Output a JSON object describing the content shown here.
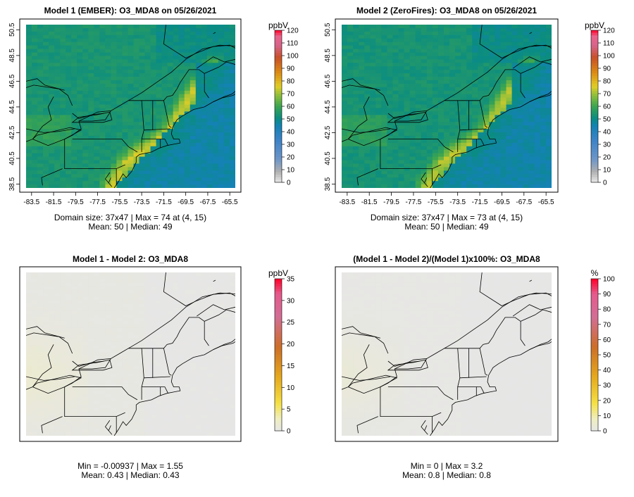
{
  "chart_data": [
    {
      "type": "heatmap",
      "title": "Model 1 (EMBER): O3_MDA8 on 05/26/2021",
      "x_ticks": [
        "-83.5",
        "-81.5",
        "-79.5",
        "-77.5",
        "-75.5",
        "-73.5",
        "-71.5",
        "-69.5",
        "-67.5",
        "-65.5"
      ],
      "y_ticks": [
        "38.5",
        "40.5",
        "42.5",
        "44.5",
        "46.5",
        "48.5",
        "50.5"
      ],
      "xlim": [
        -84,
        -65
      ],
      "ylim": [
        38.2,
        50.9
      ],
      "colorbar": {
        "unit": "ppbV",
        "ticks": [
          "0",
          "10",
          "20",
          "30",
          "40",
          "50",
          "60",
          "70",
          "80",
          "90",
          "100",
          "110",
          "120"
        ],
        "range": [
          0,
          120
        ]
      },
      "stats": [
        "Domain size: 37x47 | Max = 74 at (4, 15)",
        "Mean: 50 |  Median: 49"
      ],
      "palette": "concentration",
      "field": {
        "base": 50,
        "corridor_peak": 70,
        "inland": 56,
        "ocean": 46
      }
    },
    {
      "type": "heatmap",
      "title": "Model 2 (ZeroFires): O3_MDA8 on 05/26/2021",
      "x_ticks": [
        "-83.5",
        "-81.5",
        "-79.5",
        "-77.5",
        "-75.5",
        "-73.5",
        "-71.5",
        "-69.5",
        "-67.5",
        "-65.5"
      ],
      "y_ticks": [
        "38.5",
        "40.5",
        "42.5",
        "44.5",
        "46.5",
        "48.5",
        "50.5"
      ],
      "xlim": [
        -84,
        -65
      ],
      "ylim": [
        38.2,
        50.9
      ],
      "colorbar": {
        "unit": "ppbV",
        "ticks": [
          "0",
          "10",
          "20",
          "30",
          "40",
          "50",
          "60",
          "70",
          "80",
          "90",
          "100",
          "110",
          "120"
        ],
        "range": [
          0,
          120
        ]
      },
      "stats": [
        "Domain size: 37x47 | Max = 73 at (4, 15)",
        "Mean: 50 |  Median: 49"
      ],
      "palette": "concentration",
      "field": {
        "base": 50,
        "corridor_peak": 69,
        "inland": 55,
        "ocean": 46
      }
    },
    {
      "type": "heatmap",
      "title": "Model 1 - Model 2: O3_MDA8",
      "x_ticks": [],
      "y_ticks": [],
      "xlim": [
        -84,
        -65
      ],
      "ylim": [
        38.2,
        50.9
      ],
      "colorbar": {
        "unit": "ppbV",
        "ticks": [
          "0",
          "5",
          "10",
          "15",
          "20",
          "25",
          "30",
          "35"
        ],
        "range": [
          0,
          35
        ]
      },
      "stats": [
        "Min = -0.00937 | Max = 1.55",
        "Mean: 0.43 |  Median: 0.43"
      ],
      "palette": "difference",
      "field": {
        "base": 0.3,
        "west_peak": 1.2
      }
    },
    {
      "type": "heatmap",
      "title": "(Model 1 - Model 2)/(Model 1)x100%: O3_MDA8",
      "x_ticks": [],
      "y_ticks": [],
      "xlim": [
        -84,
        -65
      ],
      "ylim": [
        38.2,
        50.9
      ],
      "colorbar": {
        "unit": "%",
        "ticks": [
          "0",
          "10",
          "20",
          "30",
          "40",
          "50",
          "60",
          "70",
          "80",
          "90",
          "100"
        ],
        "range": [
          0,
          100
        ]
      },
      "stats": [
        "Min = 0 | Max = 3.2",
        "Mean: 0.8 |  Median: 0.8"
      ],
      "palette": "difference",
      "field": {
        "base": 0.5,
        "west_peak": 2.5
      }
    }
  ]
}
